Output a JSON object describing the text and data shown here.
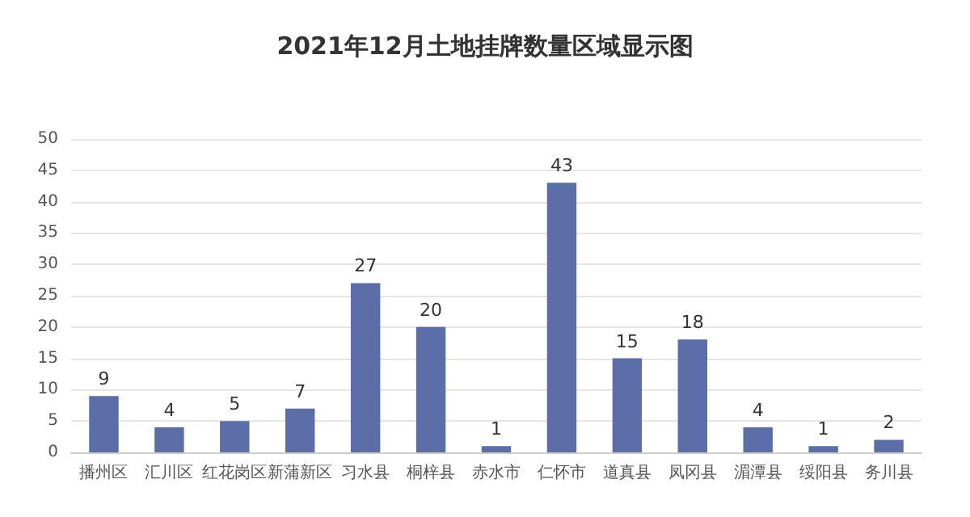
{
  "chart_data": {
    "type": "bar",
    "title": "2021年12月土地挂牌数量区域显示图",
    "categories": [
      "播州区",
      "汇川区",
      "红花岗区",
      "新蒲新区",
      "习水县",
      "桐梓县",
      "赤水市",
      "仁怀市",
      "道真县",
      "凤冈县",
      "湄潭县",
      "绥阳县",
      "务川县"
    ],
    "values": [
      9,
      4,
      5,
      7,
      27,
      20,
      1,
      43,
      15,
      18,
      4,
      1,
      2
    ],
    "color": "#5b6ea8",
    "ylim": [
      0,
      50
    ],
    "yticks": [
      0,
      5,
      10,
      15,
      20,
      25,
      30,
      35,
      40,
      45,
      50
    ],
    "grid": "y",
    "data_labels": true
  }
}
